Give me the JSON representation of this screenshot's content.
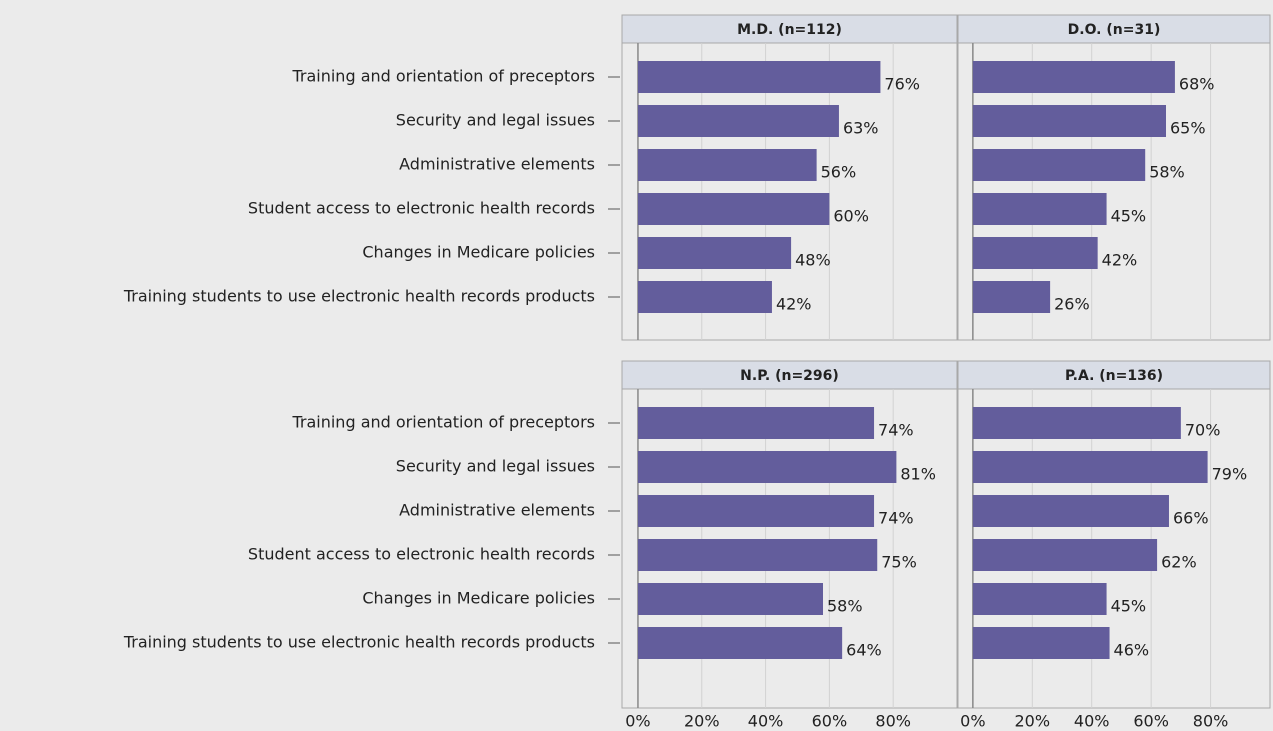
{
  "chart_data": [
    {
      "type": "bar",
      "title": "M.D. (n=112)",
      "color": "#635d9c",
      "categories": [
        "Training and orientation of preceptors",
        "Security and legal issues",
        "Administrative elements",
        "Student access to electronic health records",
        "Changes in Medicare policies",
        "Training students to use electronic health records products"
      ],
      "values": [
        76,
        63,
        56,
        60,
        48,
        42
      ],
      "value_labels": [
        "76%",
        "63%",
        "56%",
        "60%",
        "48%",
        "42%"
      ],
      "xlim": [
        -5,
        100
      ]
    },
    {
      "type": "bar",
      "title": "D.O. (n=31)",
      "color": "#635d9c",
      "values": [
        68,
        65,
        58,
        45,
        42,
        26
      ],
      "value_labels": [
        "68%",
        "65%",
        "58%",
        "45%",
        "42%",
        "26%"
      ],
      "xlim": [
        -5,
        100
      ]
    },
    {
      "type": "bar",
      "title": "N.P. (n=296)",
      "color": "#635d9c",
      "categories": [
        "Training and orientation of preceptors",
        "Security and legal issues",
        "Administrative elements",
        "Student access to electronic health records",
        "Changes in Medicare policies",
        "Training students to use electronic health records products"
      ],
      "values": [
        74,
        81,
        74,
        75,
        58,
        64
      ],
      "value_labels": [
        "74%",
        "81%",
        "74%",
        "75%",
        "58%",
        "64%"
      ],
      "xlim": [
        -5,
        100
      ],
      "xticks": [
        {
          "value": 0,
          "label": "0%"
        },
        {
          "value": 20,
          "label": "20%"
        },
        {
          "value": 40,
          "label": "40%"
        },
        {
          "value": 60,
          "label": "60%"
        },
        {
          "value": 80,
          "label": "80%"
        }
      ]
    },
    {
      "type": "bar",
      "title": "P.A. (n=136)",
      "color": "#635d9c",
      "values": [
        70,
        79,
        66,
        62,
        45,
        46
      ],
      "value_labels": [
        "70%",
        "79%",
        "66%",
        "62%",
        "45%",
        "46%"
      ],
      "xlim": [
        -5,
        100
      ],
      "xticks": [
        {
          "value": 0,
          "label": "0%"
        },
        {
          "value": 20,
          "label": "20%"
        },
        {
          "value": 40,
          "label": "40%"
        },
        {
          "value": 60,
          "label": "60%"
        },
        {
          "value": 80,
          "label": "80%"
        }
      ]
    }
  ]
}
